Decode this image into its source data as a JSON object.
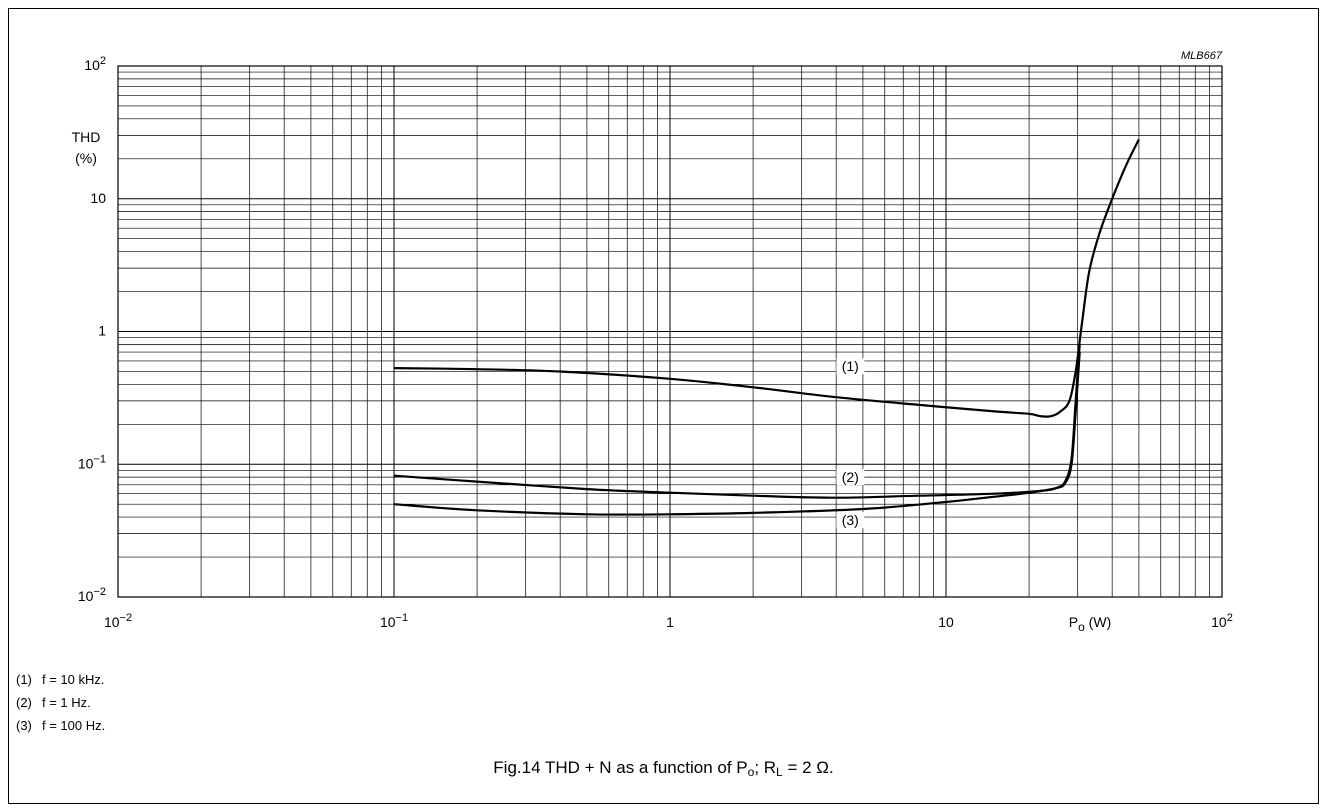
{
  "chart_data": {
    "type": "line",
    "code": "MLB667",
    "x_scale": "log",
    "y_scale": "log",
    "xlim": [
      0.01,
      100
    ],
    "ylim": [
      0.01,
      100
    ],
    "xlabel": "P",
    "xlabel_sub": "o",
    "xlabel_unit": "(W)",
    "ylabel_line1": "THD",
    "ylabel_line2": "(%)",
    "x_ticks": [
      {
        "value": 0.01,
        "base": "10",
        "exp": "−2"
      },
      {
        "value": 0.1,
        "base": "10",
        "exp": "−1"
      },
      {
        "value": 1,
        "base": "1",
        "exp": ""
      },
      {
        "value": 10,
        "base": "10",
        "exp": ""
      },
      {
        "value": 100,
        "base": "10",
        "exp": "2"
      }
    ],
    "y_ticks": [
      {
        "value": 0.01,
        "base": "10",
        "exp": "−2"
      },
      {
        "value": 0.1,
        "base": "10",
        "exp": "−1"
      },
      {
        "value": 1,
        "base": "1",
        "exp": ""
      },
      {
        "value": 10,
        "base": "10",
        "exp": ""
      },
      {
        "value": 100,
        "base": "10",
        "exp": "2"
      }
    ],
    "grid": true,
    "series": [
      {
        "name": "(1)",
        "label_at": {
          "x": 4.5,
          "y": 0.52
        },
        "x": [
          0.1,
          0.2,
          0.4,
          1,
          2,
          4,
          8,
          15,
          20,
          22,
          24,
          26,
          28,
          29.5,
          31,
          33,
          36,
          40,
          45,
          50
        ],
        "y": [
          0.53,
          0.52,
          0.5,
          0.44,
          0.38,
          0.32,
          0.28,
          0.25,
          0.24,
          0.23,
          0.23,
          0.25,
          0.3,
          0.5,
          1.1,
          2.8,
          5.5,
          10,
          18,
          28
        ]
      },
      {
        "name": "(2)",
        "label_at": {
          "x": 4.5,
          "y": 0.076
        },
        "x": [
          0.1,
          0.2,
          0.5,
          1,
          2,
          4,
          8,
          15,
          22,
          25,
          27,
          28.5,
          29.5,
          30.5
        ],
        "y": [
          0.082,
          0.074,
          0.065,
          0.061,
          0.058,
          0.056,
          0.058,
          0.06,
          0.063,
          0.066,
          0.074,
          0.11,
          0.3,
          0.8
        ]
      },
      {
        "name": "(3)",
        "label_at": {
          "x": 4.5,
          "y": 0.036
        },
        "x": [
          0.1,
          0.2,
          0.5,
          1,
          2,
          5,
          10,
          15,
          20,
          25,
          27,
          28.5,
          29.5,
          30.5
        ],
        "y": [
          0.05,
          0.045,
          0.042,
          0.042,
          0.043,
          0.046,
          0.052,
          0.057,
          0.061,
          0.066,
          0.072,
          0.1,
          0.25,
          0.7
        ]
      }
    ]
  },
  "notes": [
    {
      "num": "(1)",
      "text": "f = 10  kHz."
    },
    {
      "num": "(2)",
      "text": "f = 1 Hz."
    },
    {
      "num": "(3)",
      "text": "f = 100 Hz."
    }
  ],
  "caption": {
    "prefix": "Fig.14  THD + N as a function of P",
    "sub1": "o",
    "mid": "; R",
    "sub2": "L",
    "suffix": " = 2 Ω."
  }
}
